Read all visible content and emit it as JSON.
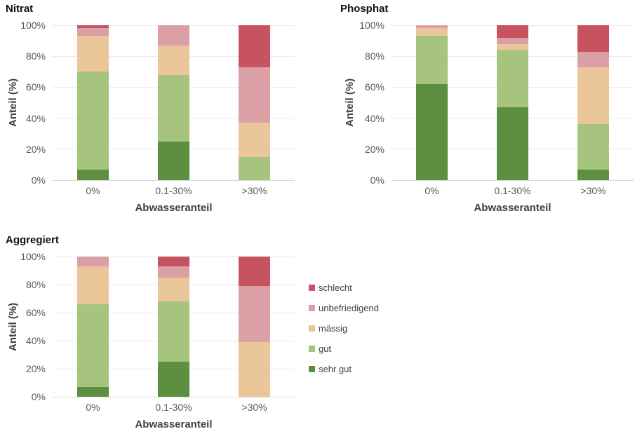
{
  "page": {
    "background": "#ffffff"
  },
  "legend": {
    "position": "right-center",
    "items": [
      {
        "label": "schlecht",
        "color": "#C75360"
      },
      {
        "label": "unbefriedigend",
        "color": "#DBA0A5"
      },
      {
        "label": "mässig",
        "color": "#EBC69B"
      },
      {
        "label": "gut",
        "color": "#A7C47F"
      },
      {
        "label": "sehr gut",
        "color": "#5C8F3F"
      }
    ]
  },
  "chart_data": [
    {
      "type": "bar",
      "stacked": true,
      "title": "Nitrat",
      "xlabel": "Abwasseranteil",
      "ylabel": "Anteil (%)",
      "categories": [
        "0%",
        "0.1-30%",
        ">30%"
      ],
      "y_ticks": [
        "0%",
        "20%",
        "40%",
        "60%",
        "80%",
        "100%"
      ],
      "ylim": [
        0,
        100
      ],
      "grid": "horizontal",
      "series": [
        {
          "name": "sehr gut",
          "color": "#5C8F3F",
          "values": [
            7,
            25,
            0
          ]
        },
        {
          "name": "gut",
          "color": "#A7C47F",
          "values": [
            63,
            43,
            15
          ]
        },
        {
          "name": "mässig",
          "color": "#EBC69B",
          "values": [
            23,
            19,
            22
          ]
        },
        {
          "name": "unbefriedigend",
          "color": "#DBA0A5",
          "values": [
            5,
            13,
            36
          ]
        },
        {
          "name": "schlecht",
          "color": "#C75360",
          "values": [
            2,
            0,
            27
          ]
        }
      ]
    },
    {
      "type": "bar",
      "stacked": true,
      "title": "Phosphat",
      "xlabel": "Abwasseranteil",
      "ylabel": "Anteil (%)",
      "categories": [
        "0%",
        "0.1-30%",
        ">30%"
      ],
      "y_ticks": [
        "0%",
        "20%",
        "40%",
        "60%",
        "80%",
        "100%"
      ],
      "ylim": [
        0,
        100
      ],
      "grid": "horizontal",
      "series": [
        {
          "name": "sehr gut",
          "color": "#5C8F3F",
          "values": [
            62,
            47,
            7
          ]
        },
        {
          "name": "gut",
          "color": "#A7C47F",
          "values": [
            31,
            37,
            29
          ]
        },
        {
          "name": "mässig",
          "color": "#EBC69B",
          "values": [
            5,
            4,
            37
          ]
        },
        {
          "name": "unbefriedigend",
          "color": "#DBA0A5",
          "values": [
            2,
            4,
            10
          ]
        },
        {
          "name": "schlecht",
          "color": "#C75360",
          "values": [
            0,
            8,
            17
          ]
        }
      ]
    },
    {
      "type": "bar",
      "stacked": true,
      "title": "Aggregiert",
      "xlabel": "Abwasseranteil",
      "ylabel": "Anteil (%)",
      "categories": [
        "0%",
        "0.1-30%",
        ">30%"
      ],
      "y_ticks": [
        "0%",
        "20%",
        "40%",
        "60%",
        "80%",
        "100%"
      ],
      "ylim": [
        0,
        100
      ],
      "grid": "horizontal",
      "series": [
        {
          "name": "sehr gut",
          "color": "#5C8F3F",
          "values": [
            7,
            25,
            0
          ]
        },
        {
          "name": "gut",
          "color": "#A7C47F",
          "values": [
            59,
            43,
            0
          ]
        },
        {
          "name": "mässig",
          "color": "#EBC69B",
          "values": [
            27,
            17,
            39
          ]
        },
        {
          "name": "unbefriedigend",
          "color": "#DBA0A5",
          "values": [
            7,
            8,
            40
          ]
        },
        {
          "name": "schlecht",
          "color": "#C75360",
          "values": [
            0,
            7,
            21
          ]
        }
      ]
    }
  ]
}
